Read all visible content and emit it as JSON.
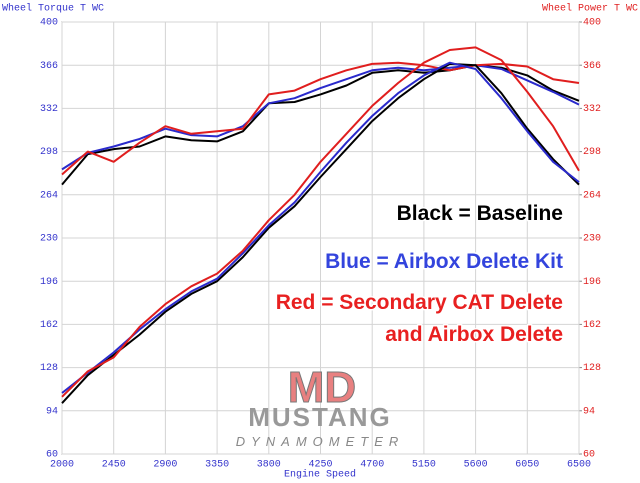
{
  "chart_data": {
    "type": "line",
    "y_label": "Wheel Torque T WC",
    "y2_label": "Wheel Power T WC",
    "x_label": "Engine Speed",
    "x": [
      2000,
      2225,
      2450,
      2675,
      2900,
      3125,
      3350,
      3575,
      3800,
      4025,
      4250,
      4475,
      4700,
      4925,
      5150,
      5375,
      5600,
      5825,
      6050,
      6275,
      6500
    ],
    "xlim": [
      2000,
      6500
    ],
    "xticks": [
      2000,
      2450,
      2900,
      3350,
      3800,
      4250,
      4700,
      5150,
      5600,
      6050,
      6500
    ],
    "ylim": [
      60,
      400
    ],
    "yticks": [
      60,
      94,
      128,
      162,
      196,
      230,
      264,
      298,
      332,
      366,
      400
    ],
    "y2lim": [
      60,
      400
    ],
    "y2ticks": [
      60,
      94,
      128,
      162,
      196,
      230,
      264,
      298,
      332,
      366,
      400
    ],
    "grid": true,
    "y_color": "#3333cc",
    "y2_color": "#e02020",
    "series": [
      {
        "color": "#000000",
        "values": [
          272,
          296,
          300,
          302,
          310,
          307,
          306,
          314,
          336,
          337,
          343,
          350,
          360,
          362,
          360,
          362,
          366,
          364,
          358,
          346,
          338
        ]
      },
      {
        "color": "#2a2acc",
        "values": [
          284,
          297,
          302,
          308,
          316,
          311,
          310,
          318,
          336,
          340,
          348,
          355,
          362,
          364,
          362,
          364,
          366,
          363,
          354,
          345,
          335
        ]
      },
      {
        "color": "#e01e1e",
        "values": [
          280,
          298,
          290,
          305,
          318,
          312,
          314,
          316,
          343,
          346,
          355,
          362,
          367,
          368,
          366,
          362,
          366,
          367,
          365,
          355,
          352
        ]
      },
      {
        "color": "#000000",
        "axis": "y2",
        "values": [
          100,
          122,
          138,
          154,
          172,
          186,
          196,
          215,
          238,
          255,
          278,
          300,
          322,
          340,
          355,
          367,
          366,
          344,
          316,
          292,
          272
        ]
      },
      {
        "color": "#2a2acc",
        "axis": "y2",
        "values": [
          108,
          124,
          140,
          158,
          174,
          188,
          198,
          218,
          240,
          258,
          282,
          305,
          326,
          344,
          358,
          368,
          363,
          340,
          314,
          290,
          274
        ]
      },
      {
        "color": "#e01e1e",
        "axis": "y2",
        "values": [
          105,
          125,
          136,
          160,
          178,
          192,
          202,
          220,
          244,
          264,
          290,
          312,
          334,
          352,
          368,
          378,
          380,
          370,
          345,
          318,
          283
        ]
      }
    ],
    "annotations": [
      {
        "text": "Black = Baseline",
        "color": "#000000"
      },
      {
        "text": "Blue = Airbox Delete Kit",
        "color": "#3344dd"
      },
      {
        "text": "Red = Secondary CAT Delete",
        "color": "#e82020"
      },
      {
        "text": "and Airbox Delete",
        "color": "#e82020"
      }
    ]
  },
  "logo": {
    "mark": "MD",
    "name": "MUSTANG",
    "sub": "DYNAMOMETER"
  }
}
